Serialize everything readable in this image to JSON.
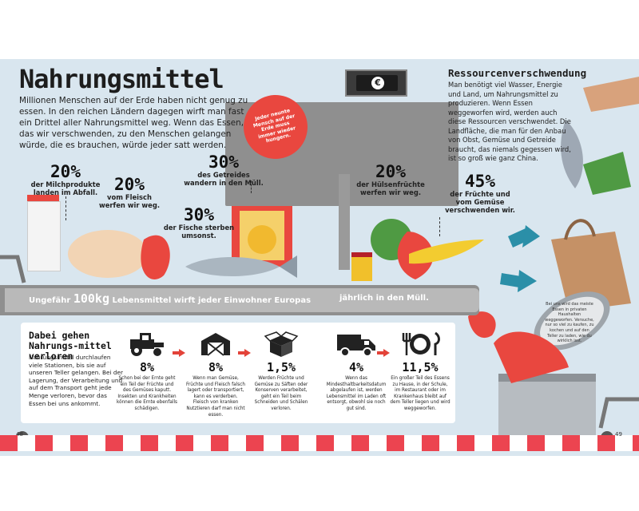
{
  "page": {
    "title": "Nahrungsmittel",
    "intro": "Millionen Menschen auf der Erde haben nicht genug zu essen. In den reichen Ländern dagegen wirft man fast ein Drittel aller Nahrungsmittel weg. Wenn das Essen, das wir verschwenden, zu den Menschen gelangen würde, die es brauchen, würde jeder satt werden.",
    "badge": "Jeder neunte Mensch auf der Erde muss immer wieder hungern.",
    "page_left": "48",
    "page_right": "49"
  },
  "stats": [
    {
      "pct": "20%",
      "text": "der Milchprodukte landen im Abfall."
    },
    {
      "pct": "20%",
      "text": "vom Fleisch werfen wir weg."
    },
    {
      "pct": "30%",
      "text": "des Getreides wandern in den Müll."
    },
    {
      "pct": "30%",
      "text": "der Fische sterben umsonst."
    },
    {
      "pct": "20%",
      "text": "der Hülsenfrüchte werfen wir weg."
    },
    {
      "pct": "45%",
      "text": "der Früchte und vom Gemüse verschwenden wir."
    }
  ],
  "resource": {
    "title": "Ressourcenverschwendung",
    "text": "Man benötigt viel Wasser, Energie und Land, um Nahrungsmittel zu produzieren. Wenn Essen weggeworfen wird, werden auch diese Ressourcen verschwendet. Die Landfläche, die man für den Anbau von Obst, Gemüse und Getreide braucht, das niemals gegessen wird, ist so groß wie ganz China."
  },
  "strip": {
    "part1": "Ungefähr",
    "amount": "100kg",
    "part2": "Lebensmittel wirft jeder Einwohner Europas",
    "part3": "jährlich in den Müll."
  },
  "losses": {
    "title": "Dabei gehen Nahrungs-mittel verloren",
    "text": "Nahrungsmittel durchlaufen viele Stationen, bis sie auf unseren Teller gelangen. Bei der Lagerung, der Verarbeitung und auf dem Transport geht jede Menge verloren, bevor das Essen bei uns ankommt.",
    "steps": [
      {
        "icon": "tractor-icon",
        "pct": "8%",
        "text": "Schon bei der Ernte geht ein Teil der Früchte und des Gemüses kaputt. Insekten und Krankheiten können die Ernte ebenfalls schädigen."
      },
      {
        "icon": "barn-icon",
        "pct": "8%",
        "text": "Wenn man Gemüse, Früchte und Fleisch falsch lagert oder transportiert, kann es verderben. Fleisch von kranken Nutztieren darf man nicht essen."
      },
      {
        "icon": "box-icon",
        "pct": "1,5%",
        "text": "Werden Früchte und Gemüse zu Säften oder Konserven verarbeitet, geht ein Teil beim Schneiden und Schälen verloren."
      },
      {
        "icon": "truck-icon",
        "pct": "4%",
        "text": "Wenn das Mindesthaltbarkeitsdatum abgelaufen ist, werden Lebensmittel im Laden oft entsorgt, obwohl sie noch gut sind."
      },
      {
        "icon": "plate-icon",
        "pct": "11,5%",
        "text": "Ein großer Teil des Essens zu Hause, in der Schule, im Restaurant oder im Krankenhaus bleibt auf dem Teller liegen und wird weggeworfen."
      }
    ]
  },
  "lid_text": "Bei uns wird das meiste Essen in privaten Haushalten weggeworfen. Versuche, nur so viel zu kaufen, zu kochen und auf den Teller zu laden, wie du wirklich isst."
}
